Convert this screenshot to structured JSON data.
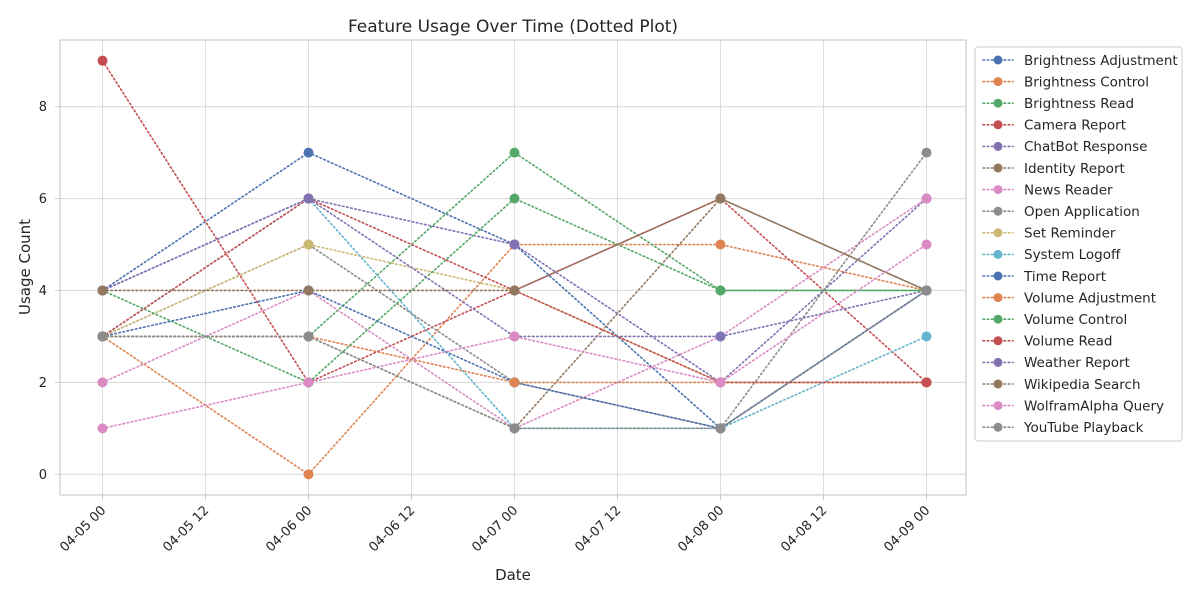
{
  "chart_data": {
    "type": "line",
    "title": "Feature Usage Over Time (Dotted Plot)",
    "xlabel": "Date",
    "ylabel": "Usage Count",
    "x": [
      "04-05 00",
      "04-06 00",
      "04-07 00",
      "04-08 00",
      "04-09 00"
    ],
    "x_ticks": [
      "04-05 00",
      "04-05 12",
      "04-06 00",
      "04-06 12",
      "04-07 00",
      "04-07 12",
      "04-08 00",
      "04-08 12",
      "04-09 00"
    ],
    "y_ticks": [
      0,
      2,
      4,
      6,
      8
    ],
    "ylim": [
      -0.45,
      9.45
    ],
    "grid": true,
    "legend_position": "outside-right",
    "line_style": "dotted",
    "series": [
      {
        "name": "Brightness Adjustment",
        "color": "#4c72b0",
        "values": [
          4,
          7,
          5,
          1,
          4
        ]
      },
      {
        "name": "Brightness Control",
        "color": "#dd8452",
        "values": [
          3,
          0,
          5,
          5,
          4
        ]
      },
      {
        "name": "Brightness Read",
        "color": "#55a868",
        "values": [
          3,
          3,
          7,
          4,
          4
        ]
      },
      {
        "name": "Camera Report",
        "color": "#c44e52",
        "values": [
          9,
          2,
          4,
          6,
          2
        ]
      },
      {
        "name": "ChatBot Response",
        "color": "#8172b3",
        "values": [
          4,
          6,
          5,
          2,
          6
        ]
      },
      {
        "name": "Identity Report",
        "color": "#937860",
        "values": [
          3,
          3,
          1,
          6,
          4
        ]
      },
      {
        "name": "News Reader",
        "color": "#da8bc3",
        "values": [
          2,
          4,
          1,
          3,
          6
        ]
      },
      {
        "name": "Open Application",
        "color": "#8c8c8c",
        "values": [
          3,
          5,
          2,
          1,
          7
        ]
      },
      {
        "name": "Set Reminder",
        "color": "#ccb974",
        "values": [
          3,
          5,
          4,
          2,
          2
        ]
      },
      {
        "name": "System Logoff",
        "color": "#64b5cd",
        "values": [
          3,
          6,
          1,
          1,
          3
        ]
      },
      {
        "name": "Time Report",
        "color": "#4c72b0",
        "values": [
          3,
          4,
          2,
          1,
          4
        ]
      },
      {
        "name": "Volume Adjustment",
        "color": "#dd8452",
        "values": [
          3,
          3,
          2,
          2,
          2
        ]
      },
      {
        "name": "Volume Control",
        "color": "#55a868",
        "values": [
          4,
          2,
          6,
          4,
          4
        ]
      },
      {
        "name": "Volume Read",
        "color": "#c44e52",
        "values": [
          3,
          6,
          4,
          2,
          2
        ]
      },
      {
        "name": "Weather Report",
        "color": "#8172b3",
        "values": [
          4,
          6,
          3,
          3,
          4
        ]
      },
      {
        "name": "Wikipedia Search",
        "color": "#937860",
        "values": [
          4,
          4,
          4,
          6,
          4
        ]
      },
      {
        "name": "WolframAlpha Query",
        "color": "#da8bc3",
        "values": [
          1,
          2,
          3,
          2,
          5
        ]
      },
      {
        "name": "YouTube Playback",
        "color": "#8c8c8c",
        "values": [
          3,
          3,
          1,
          1,
          4
        ]
      }
    ]
  }
}
